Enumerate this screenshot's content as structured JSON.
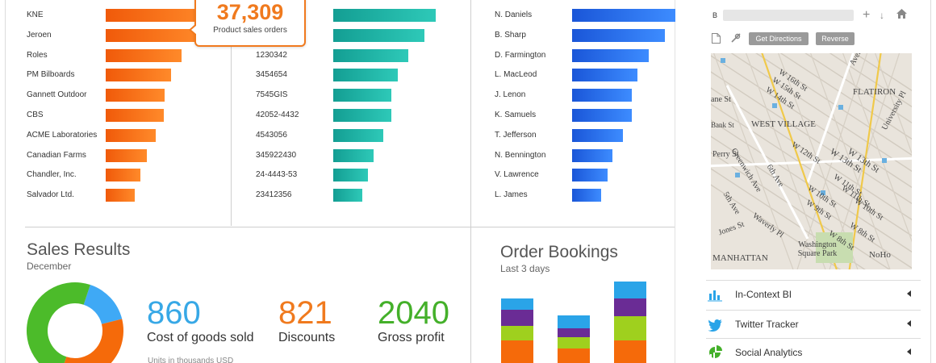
{
  "colors": {
    "orange": "#f07a1e",
    "teal": "#1fb5a6",
    "blue": "#2a6ff0",
    "kpi_blue": "#37a8e6",
    "kpi_orange": "#f07a1e",
    "kpi_green": "#44b02a"
  },
  "panel_customers": {
    "items": [
      {
        "label": "KNE",
        "value": 1.0
      },
      {
        "label": "Jeroen",
        "value": 0.93
      },
      {
        "label": "Roles",
        "value": 0.72
      },
      {
        "label": "PM Bilboards",
        "value": 0.62
      },
      {
        "label": "Gannett Outdoor",
        "value": 0.56
      },
      {
        "label": "CBS",
        "value": 0.55
      },
      {
        "label": "ACME Laboratories",
        "value": 0.48
      },
      {
        "label": "Canadian Farms",
        "value": 0.39
      },
      {
        "label": "Chandler, Inc.",
        "value": 0.33
      },
      {
        "label": "Salvador Ltd.",
        "value": 0.28
      }
    ],
    "callout": {
      "value": "37,309",
      "label": "Product sales orders"
    }
  },
  "panel_orders": {
    "items": [
      {
        "label": "",
        "value": 1.0
      },
      {
        "label": "",
        "value": 0.89
      },
      {
        "label": "1230342",
        "value": 0.73
      },
      {
        "label": "3454654",
        "value": 0.63
      },
      {
        "label": "7545GIS",
        "value": 0.57
      },
      {
        "label": "42052-4432",
        "value": 0.57
      },
      {
        "label": "4543056",
        "value": 0.49
      },
      {
        "label": "345922430",
        "value": 0.39
      },
      {
        "label": "24-4443-53",
        "value": 0.34
      },
      {
        "label": "23412356",
        "value": 0.28
      }
    ]
  },
  "panel_reps": {
    "items": [
      {
        "label": "N. Daniels",
        "value": 1.0
      },
      {
        "label": "B. Sharp",
        "value": 0.9
      },
      {
        "label": "D. Farmington",
        "value": 0.74
      },
      {
        "label": "L. MacLeod",
        "value": 0.63
      },
      {
        "label": "J. Lenon",
        "value": 0.58
      },
      {
        "label": "K. Samuels",
        "value": 0.58
      },
      {
        "label": "T. Jefferson",
        "value": 0.49
      },
      {
        "label": "N. Bennington",
        "value": 0.39
      },
      {
        "label": "V. Lawrence",
        "value": 0.34
      },
      {
        "label": "L. James",
        "value": 0.28
      }
    ]
  },
  "sales_results": {
    "title": "Sales Results",
    "subtitle": "December",
    "donut": [
      {
        "color": "#3fa9f5",
        "fraction": 0.16
      },
      {
        "color": "#f56a0a",
        "fraction": 0.34
      },
      {
        "color": "#4cbb2a",
        "fraction": 0.5
      }
    ],
    "kpis": [
      {
        "value": "860",
        "label": "Cost of goods sold",
        "color": "#37a8e6"
      },
      {
        "value": "821",
        "label": "Discounts",
        "color": "#f07a1e"
      },
      {
        "value": "2040",
        "label": "Gross profit",
        "color": "#44b02a"
      }
    ],
    "footnote": "Units in thousands USD"
  },
  "order_bookings": {
    "title": "Order Bookings",
    "subtitle": "Last 3 days",
    "stacks": [
      {
        "segments": [
          {
            "color": "#f56a0a",
            "value": 28
          },
          {
            "color": "#9fd01e",
            "value": 18
          },
          {
            "color": "#6a2c95",
            "value": 20
          },
          {
            "color": "#2aa4e8",
            "value": 14
          }
        ]
      },
      {
        "segments": [
          {
            "color": "#f56a0a",
            "value": 18
          },
          {
            "color": "#9fd01e",
            "value": 14
          },
          {
            "color": "#6a2c95",
            "value": 11
          },
          {
            "color": "#2aa4e8",
            "value": 16
          }
        ]
      },
      {
        "segments": [
          {
            "color": "#f56a0a",
            "value": 28
          },
          {
            "color": "#9fd01e",
            "value": 30
          },
          {
            "color": "#6a2c95",
            "value": 22
          },
          {
            "color": "#2aa4e8",
            "value": 21
          }
        ]
      }
    ]
  },
  "map_panel": {
    "b_label": "B",
    "get_directions": "Get Directions",
    "reverse": "Reverse",
    "map_labels": [
      {
        "text": "W 16th St",
        "rot": 34
      },
      {
        "text": "W 15th St",
        "rot": 34
      },
      {
        "text": "W 14th St",
        "rot": 34
      },
      {
        "text": "W 13th St",
        "rot": 34
      },
      {
        "text": "W 12th St",
        "rot": 34
      },
      {
        "text": "W 11th St",
        "rot": 34
      },
      {
        "text": "W 10th St",
        "rot": 34
      },
      {
        "text": "W 9th St",
        "rot": 34
      },
      {
        "text": "W 8th St",
        "rot": 34
      },
      {
        "text": "W 13th St",
        "rot": 34
      },
      {
        "text": "W 11th St",
        "rot": 34
      },
      {
        "text": "W 10th St",
        "rot": 34
      },
      {
        "text": "W 8th St",
        "rot": 34
      },
      {
        "text": "FLATIRON",
        "rot": 0
      },
      {
        "text": "WEST VILLAGE",
        "rot": 0
      },
      {
        "text": "Bank St",
        "rot": 0
      },
      {
        "text": "Perry St",
        "rot": 0
      },
      {
        "text": "Jones St",
        "rot": -20
      },
      {
        "text": "MANHATTAN",
        "rot": 0
      },
      {
        "text": "Washington Square Park",
        "rot": 0
      },
      {
        "text": "NoHo",
        "rot": 0
      },
      {
        "text": "Greenwich Ave",
        "rot": 58
      },
      {
        "text": "6th Ave",
        "rot": 58
      },
      {
        "text": "5th Ave",
        "rot": 58
      },
      {
        "text": "Waverly Pl",
        "rot": 36
      },
      {
        "text": "Avenue of",
        "rot": -62
      },
      {
        "text": "University Pl",
        "rot": -62
      },
      {
        "text": "ane St",
        "rot": 0
      }
    ],
    "side_items": [
      {
        "label": "In-Context BI"
      },
      {
        "label": "Twitter Tracker"
      },
      {
        "label": "Social Analytics"
      }
    ]
  }
}
